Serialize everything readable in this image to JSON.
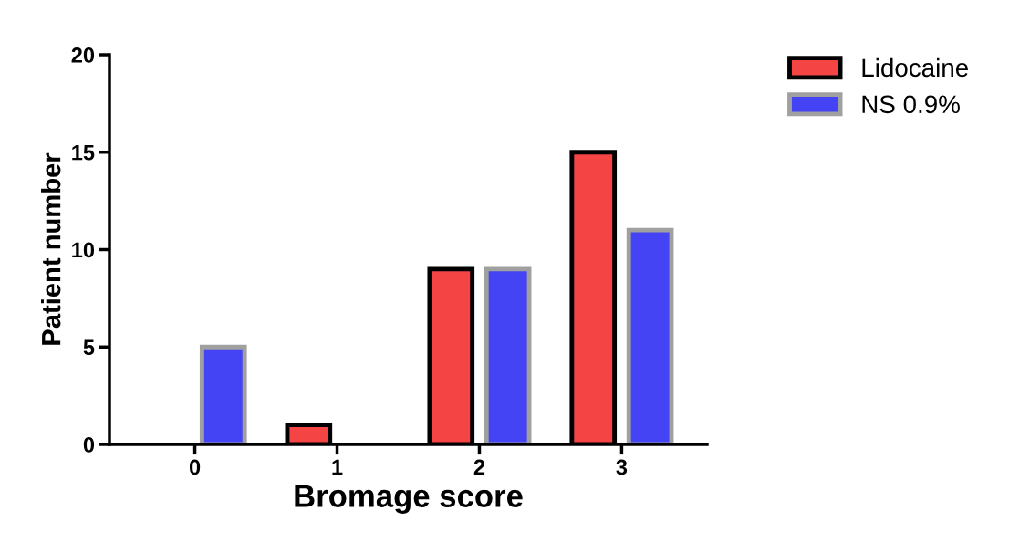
{
  "chart_data": {
    "type": "bar",
    "xlabel": "Bromage score",
    "ylabel": "Patient number",
    "categories": [
      "0",
      "1",
      "2",
      "3"
    ],
    "series": [
      {
        "name": "Lidocaine",
        "color": "#f44444",
        "values": [
          null,
          1,
          9,
          15
        ]
      },
      {
        "name": "NS 0.9%",
        "color": "#4444f4",
        "values": [
          5,
          null,
          9,
          11
        ]
      }
    ],
    "ylim": [
      0,
      20
    ],
    "yticks": [
      0,
      5,
      10,
      15,
      20
    ],
    "grid": false,
    "legend": "top right"
  }
}
